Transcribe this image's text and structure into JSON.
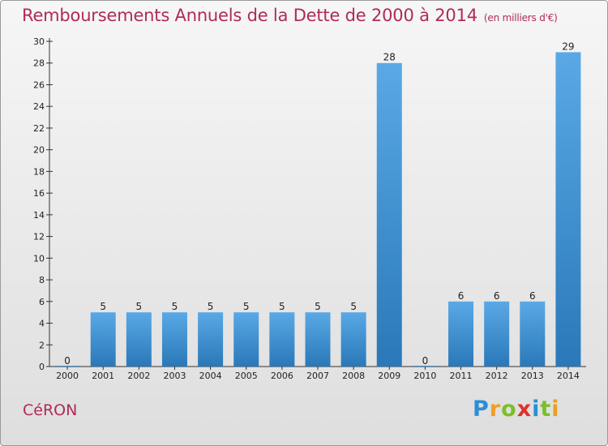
{
  "header": {
    "title": "Remboursements Annuels de la Dette de 2000 à 2014",
    "unit": "(en milliers d'€)"
  },
  "footer": {
    "commune": "CéRON",
    "logo_letters": [
      "P",
      "r",
      "o",
      "x",
      "i",
      "t",
      "i"
    ],
    "logo_colors": [
      "#2a8fd6",
      "#f0a020",
      "#7bbf2a",
      "#e0302a",
      "#2a8fd6",
      "#7bbf2a",
      "#e8a020"
    ]
  },
  "colors": {
    "bar_light": "#5aa9e6",
    "bar_dark": "#2a78b8",
    "title": "#b02a5a"
  },
  "chart_data": {
    "type": "bar",
    "title": "Remboursements Annuels de la Dette de 2000 à 2014",
    "categories": [
      "2000",
      "2001",
      "2002",
      "2003",
      "2004",
      "2005",
      "2006",
      "2007",
      "2008",
      "2009",
      "2010",
      "2011",
      "2012",
      "2013",
      "2014"
    ],
    "values": [
      0,
      5,
      5,
      5,
      5,
      5,
      5,
      5,
      5,
      28,
      0,
      6,
      6,
      6,
      29
    ],
    "data_labels": [
      "0",
      "5",
      "5",
      "5",
      "5",
      "5",
      "5",
      "5",
      "5",
      "28",
      "0",
      "6",
      "6",
      "6",
      "29"
    ],
    "y_ticks": [
      "0",
      "2",
      "4",
      "6",
      "8",
      "10",
      "12",
      "14",
      "16",
      "18",
      "20",
      "22",
      "24",
      "26",
      "28",
      "30"
    ],
    "ylim": [
      0,
      30
    ],
    "grid": false,
    "legend": "none"
  }
}
